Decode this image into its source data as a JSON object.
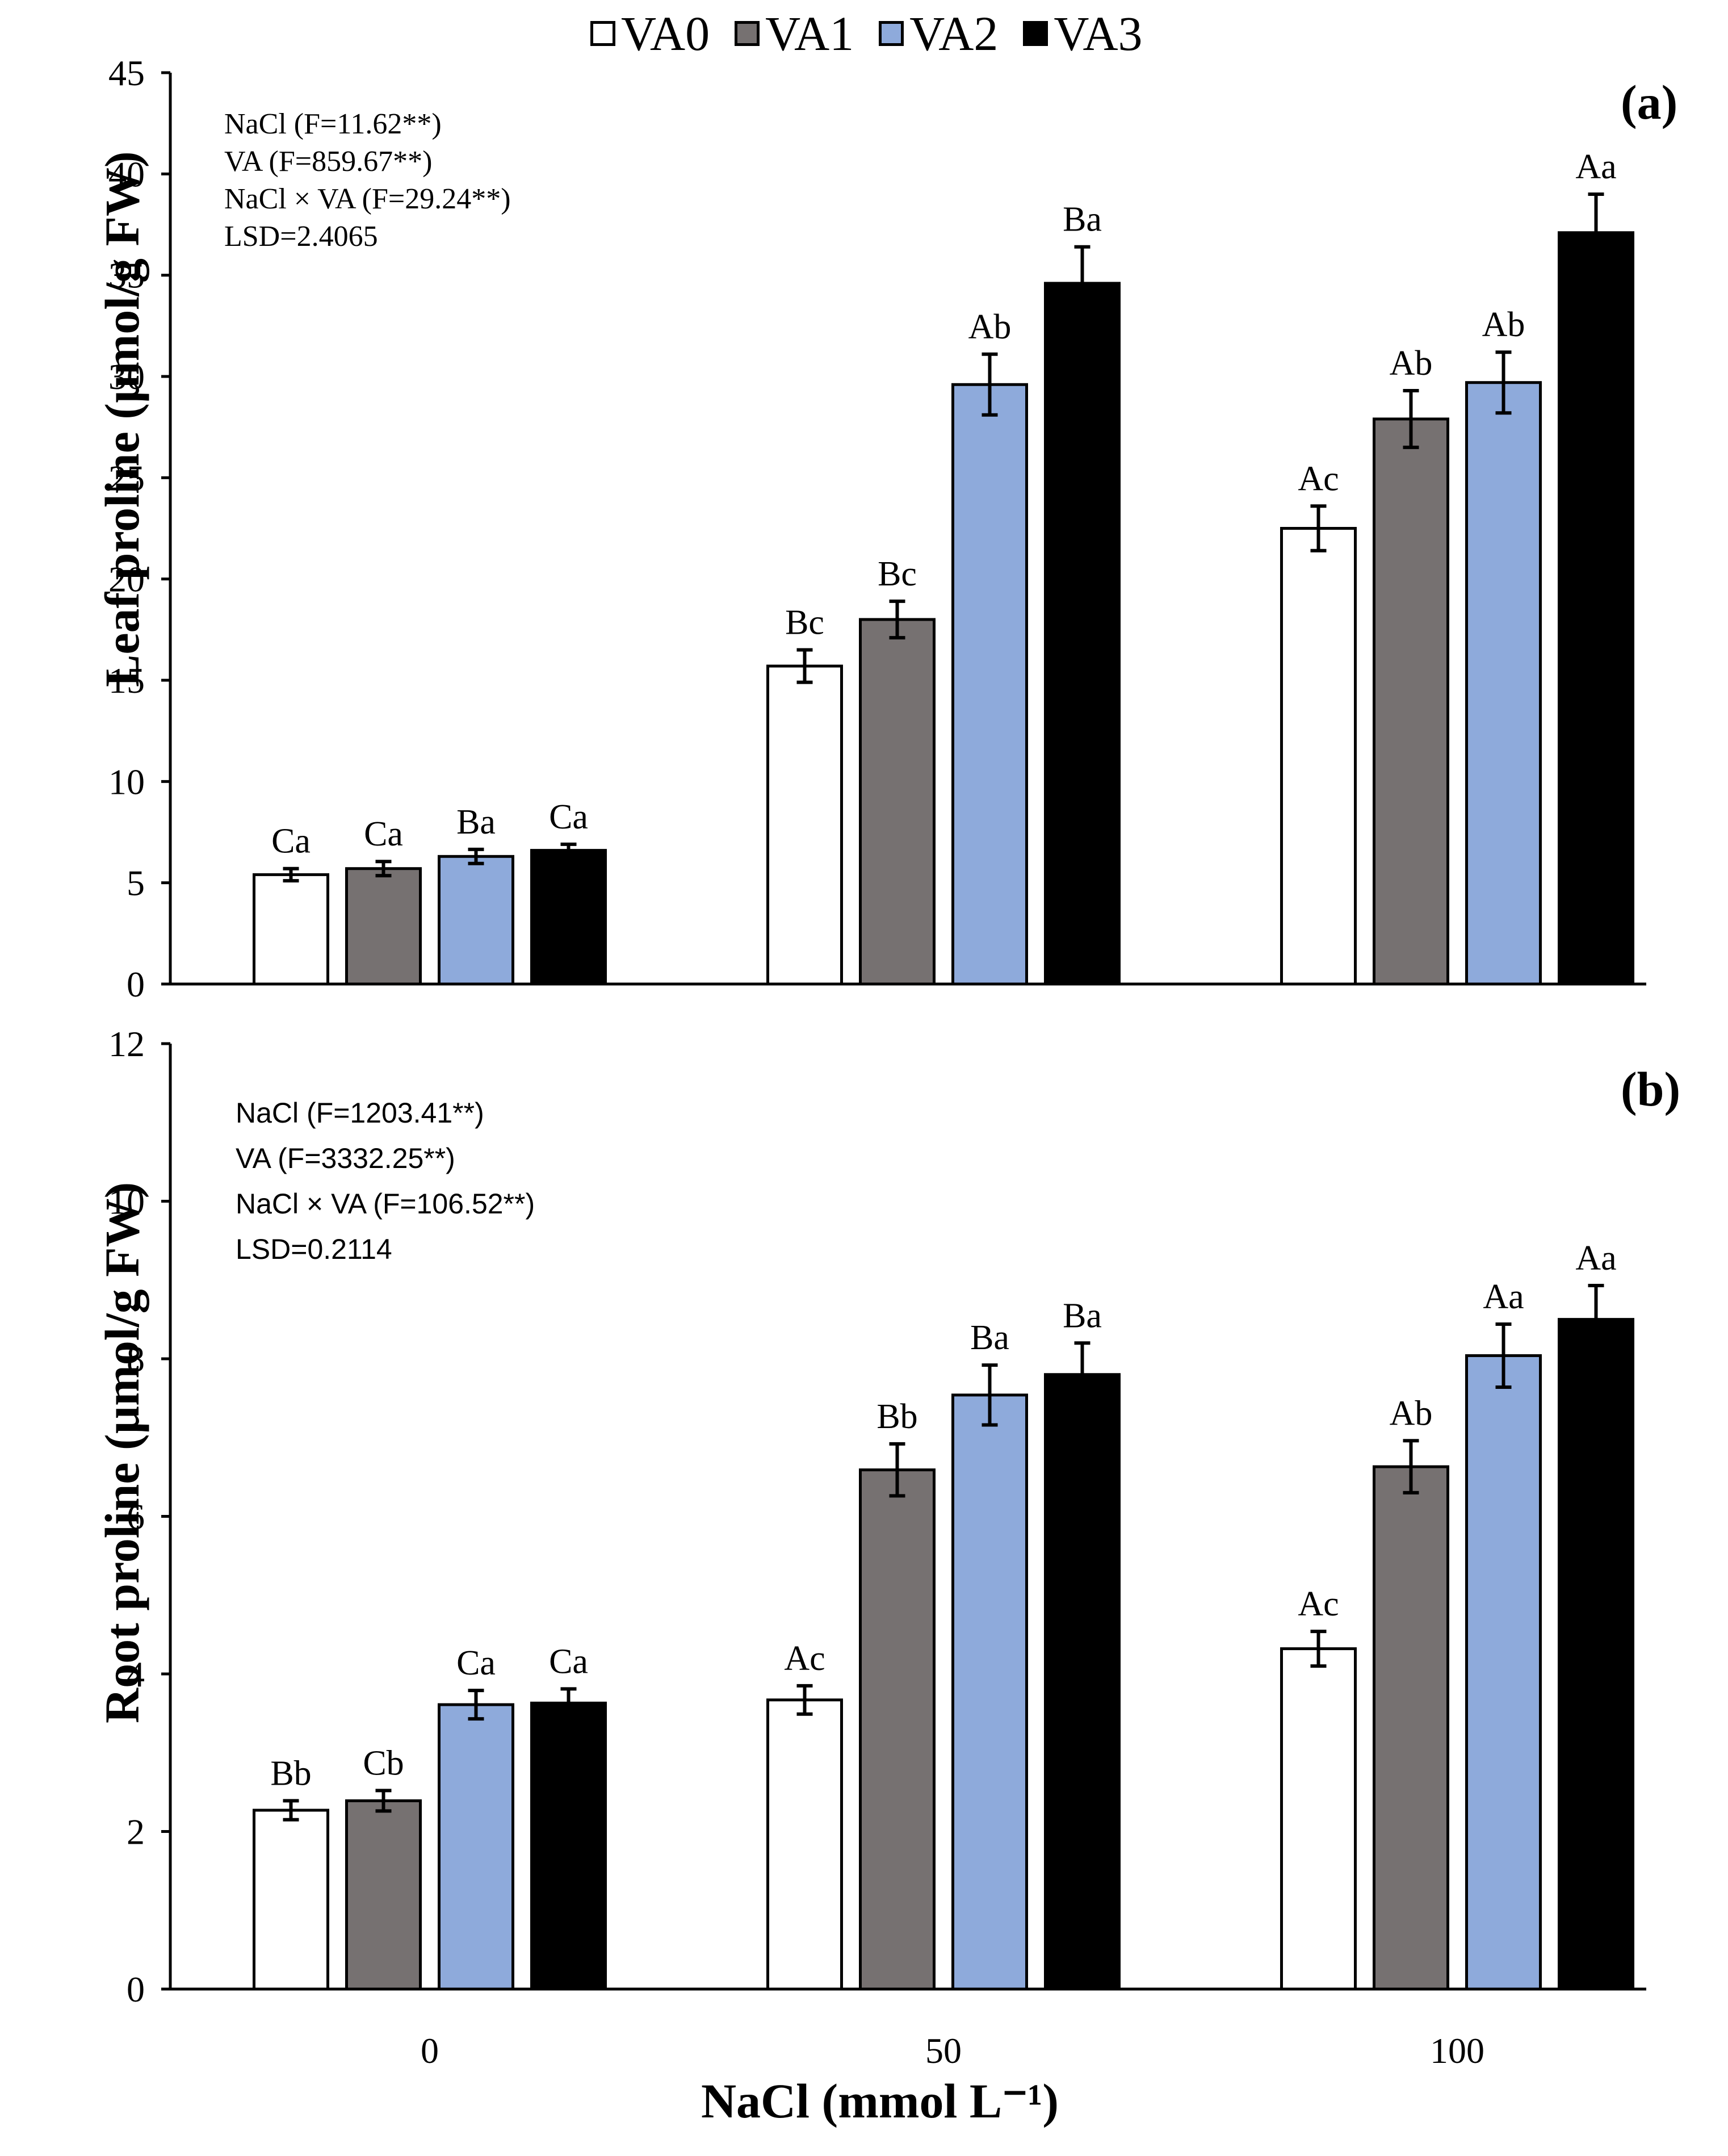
{
  "colors": {
    "VA0": "#ffffff",
    "VA1": "#767171",
    "VA2": "#8eaadb",
    "VA3": "#000000"
  },
  "legend": [
    "VA0",
    "VA1",
    "VA2",
    "VA3"
  ],
  "xlabel": "NaCl (mmol L⁻¹)",
  "chart_data": [
    {
      "type": "bar",
      "panel": "(a)",
      "ylabel": "Leaf proline (µmol/g FW)",
      "categories": [
        "0",
        "50",
        "100"
      ],
      "ylim": [
        0,
        45
      ],
      "yticks": [
        0,
        5,
        10,
        15,
        20,
        25,
        30,
        35,
        40,
        45
      ],
      "series": [
        {
          "name": "VA0",
          "values": [
            5.4,
            15.7,
            22.5
          ],
          "errors": [
            0.3,
            0.8,
            1.1
          ],
          "labels": [
            "Ca",
            "Bc",
            "Ac"
          ]
        },
        {
          "name": "VA1",
          "values": [
            5.7,
            18.0,
            27.9
          ],
          "errors": [
            0.35,
            0.9,
            1.4
          ],
          "labels": [
            "Ca",
            "Bc",
            "Ab"
          ]
        },
        {
          "name": "VA2",
          "values": [
            6.3,
            29.6,
            29.7
          ],
          "errors": [
            0.35,
            1.5,
            1.5
          ],
          "labels": [
            "Ba",
            "Ab",
            "Ab"
          ]
        },
        {
          "name": "VA3",
          "values": [
            6.6,
            34.6,
            37.1
          ],
          "errors": [
            0.3,
            1.8,
            1.9
          ],
          "labels": [
            "Ca",
            "Ba",
            "Aa"
          ]
        }
      ],
      "stats": [
        "NaCl (F=11.62**)",
        "VA (F=859.67**)",
        "NaCl × VA (F=29.24**)",
        "LSD=2.4065"
      ]
    },
    {
      "type": "bar",
      "panel": "(b)",
      "ylabel": "Root proline (µmol/g FW)",
      "categories": [
        "0",
        "50",
        "100"
      ],
      "ylim": [
        0,
        12
      ],
      "yticks": [
        0,
        2,
        4,
        6,
        8,
        10,
        12
      ],
      "series": [
        {
          "name": "VA0",
          "values": [
            2.27,
            3.67,
            4.32
          ],
          "errors": [
            0.12,
            0.18,
            0.22
          ],
          "labels": [
            "Bb",
            "Ac",
            "Ac"
          ]
        },
        {
          "name": "VA1",
          "values": [
            2.39,
            6.59,
            6.63
          ],
          "errors": [
            0.13,
            0.33,
            0.33
          ],
          "labels": [
            "Cb",
            "Bb",
            "Ab"
          ]
        },
        {
          "name": "VA2",
          "values": [
            3.61,
            7.54,
            8.04
          ],
          "errors": [
            0.18,
            0.38,
            0.4
          ],
          "labels": [
            "Ca",
            "Ba",
            "Aa"
          ]
        },
        {
          "name": "VA3",
          "values": [
            3.63,
            7.8,
            8.5
          ],
          "errors": [
            0.18,
            0.4,
            0.43
          ],
          "labels": [
            "Ca",
            "Ba",
            "Aa"
          ]
        }
      ],
      "stats": [
        "NaCl (F=1203.41**)",
        "VA (F=3332.25**)",
        "NaCl × VA (F=106.52**)",
        "LSD=0.2114"
      ]
    }
  ]
}
